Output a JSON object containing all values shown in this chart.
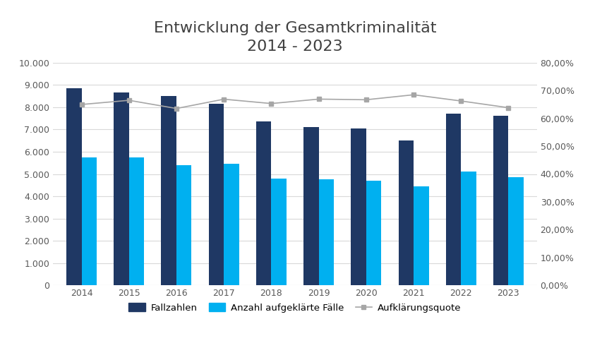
{
  "years": [
    2014,
    2015,
    2016,
    2017,
    2018,
    2019,
    2020,
    2021,
    2022,
    2023
  ],
  "fallzahlen": [
    8850,
    8650,
    8500,
    8150,
    7350,
    7100,
    7050,
    6500,
    7700,
    7600
  ],
  "aufgeklaerte_faelle": [
    5750,
    5750,
    5400,
    5450,
    4800,
    4750,
    4700,
    4450,
    5100,
    4850
  ],
  "aufklaerungsquote": [
    0.6497,
    0.6647,
    0.6353,
    0.6687,
    0.6531,
    0.669,
    0.6667,
    0.6846,
    0.6623,
    0.6382
  ],
  "title_line1": "Entwicklung der Gesamtkriminalität",
  "title_line2": "2014 - 2023",
  "bar_color_fallzahlen": "#1f3864",
  "bar_color_aufgeklaert": "#00b0f0",
  "line_color": "#a6a6a6",
  "legend_fallzahlen": "Fallzahlen",
  "legend_aufgeklaert": "Anzahl aufgeklärte Fälle",
  "legend_quote": "Aufklärungsquote",
  "ylim_left": [
    0,
    10000
  ],
  "ylim_right": [
    0.0,
    0.8
  ],
  "yticks_left": [
    0,
    1000,
    2000,
    3000,
    4000,
    5000,
    6000,
    7000,
    8000,
    9000,
    10000
  ],
  "ytick_labels_left": [
    "0",
    "1.000",
    "2.000",
    "3.000",
    "4.000",
    "5.000",
    "6.000",
    "7.000",
    "8.000",
    "9.000",
    "10.000"
  ],
  "yticks_right": [
    0.0,
    0.1,
    0.2,
    0.3,
    0.4,
    0.5,
    0.6,
    0.7,
    0.8
  ],
  "ytick_labels_right": [
    "0,00%",
    "10,00%",
    "20,00%",
    "30,00%",
    "40,00%",
    "50,00%",
    "60,00%",
    "70,00%",
    "80,00%"
  ],
  "background_color": "#ffffff",
  "grid_color": "#d9d9d9",
  "title_fontsize": 16,
  "axis_fontsize": 9,
  "xtick_fontsize": 9,
  "bar_width": 0.32,
  "line_marker": "s",
  "line_marker_color": "#a6a6a6",
  "line_marker_size": 5,
  "line_width": 1.2
}
